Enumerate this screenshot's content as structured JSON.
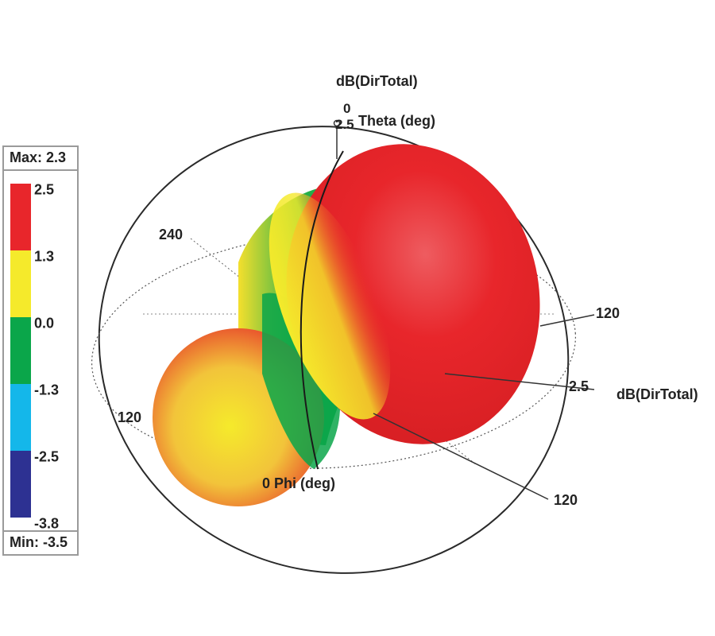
{
  "legend": {
    "max_label": "Max: 2.3",
    "min_label": "Min: -3.5",
    "ticks": [
      "2.5",
      "1.3",
      "0.0",
      "-1.3",
      "-2.5",
      "-3.8"
    ],
    "band_colors": [
      "#e8262b",
      "#f5ea2b",
      "#0aa64a",
      "#14b7ea",
      "#2d3192"
    ]
  },
  "axes": {
    "top_quantity": "dB(DirTotal)",
    "theta_zero": "0",
    "theta_scale": "2.5",
    "theta_label": "Theta (deg)",
    "label_240": "240",
    "label_120_right": "120",
    "scale_right": "2.5",
    "right_quantity": "dB(DirTotal)",
    "label_120_left": "120",
    "phi_label": "0 Phi (deg)",
    "label_120_bottom": "120"
  },
  "chart_data": {
    "type": "3d-radiation-pattern",
    "quantity": "dB(DirTotal)",
    "max": 2.3,
    "min": -3.5,
    "colorbar_ticks": [
      2.5,
      1.3,
      0.0,
      -1.3,
      -2.5,
      -3.8
    ],
    "colors": [
      "#e8262b",
      "#f5ea2b",
      "#0aa64a",
      "#14b7ea",
      "#2d3192"
    ],
    "pattern": "two-lobe (peanut-shaped) pattern, larger red lobe upper-right, smaller lobe lower-left, green/yellow neck",
    "theta_axis_label": "Theta (deg)",
    "phi_axis_label": "0 Phi (deg)",
    "radial_scale": 2.5
  }
}
